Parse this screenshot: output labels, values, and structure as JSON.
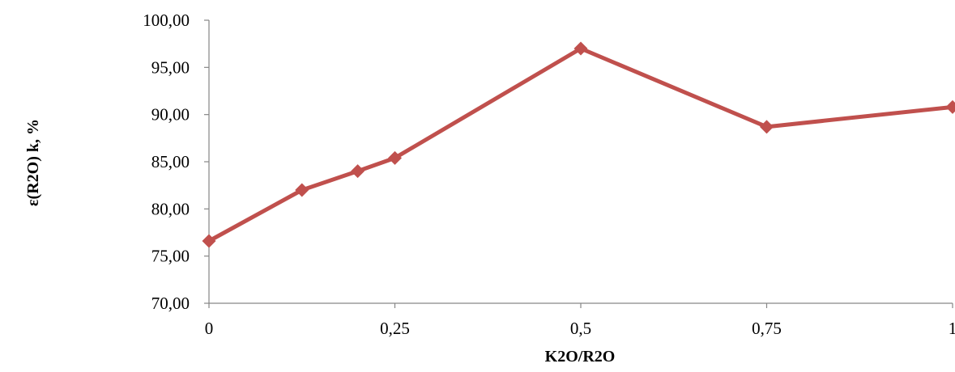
{
  "chart_data": {
    "type": "line",
    "title": "",
    "xlabel": "K2O/R2O",
    "ylabel": "ε(R2O) k, %",
    "xlim": [
      0,
      1
    ],
    "ylim": [
      70,
      100
    ],
    "x_ticks": [
      {
        "value": 0,
        "label": "0"
      },
      {
        "value": 0.25,
        "label": "0,25"
      },
      {
        "value": 0.5,
        "label": "0,5"
      },
      {
        "value": 0.75,
        "label": "0,75"
      },
      {
        "value": 1,
        "label": "1"
      }
    ],
    "y_ticks": [
      {
        "value": 70,
        "label": "70,00"
      },
      {
        "value": 75,
        "label": "75,00"
      },
      {
        "value": 80,
        "label": "80,00"
      },
      {
        "value": 85,
        "label": "85,00"
      },
      {
        "value": 90,
        "label": "90,00"
      },
      {
        "value": 95,
        "label": "95,00"
      },
      {
        "value": 100,
        "label": "100,00"
      }
    ],
    "grid": false,
    "legend": "none",
    "series": [
      {
        "color": "#c0504d",
        "marker": "diamond",
        "x": [
          0,
          0.125,
          0.2,
          0.25,
          0.5,
          0.75,
          1
        ],
        "y": [
          76.6,
          82.0,
          84.0,
          85.4,
          97.0,
          88.7,
          90.8
        ]
      }
    ]
  }
}
